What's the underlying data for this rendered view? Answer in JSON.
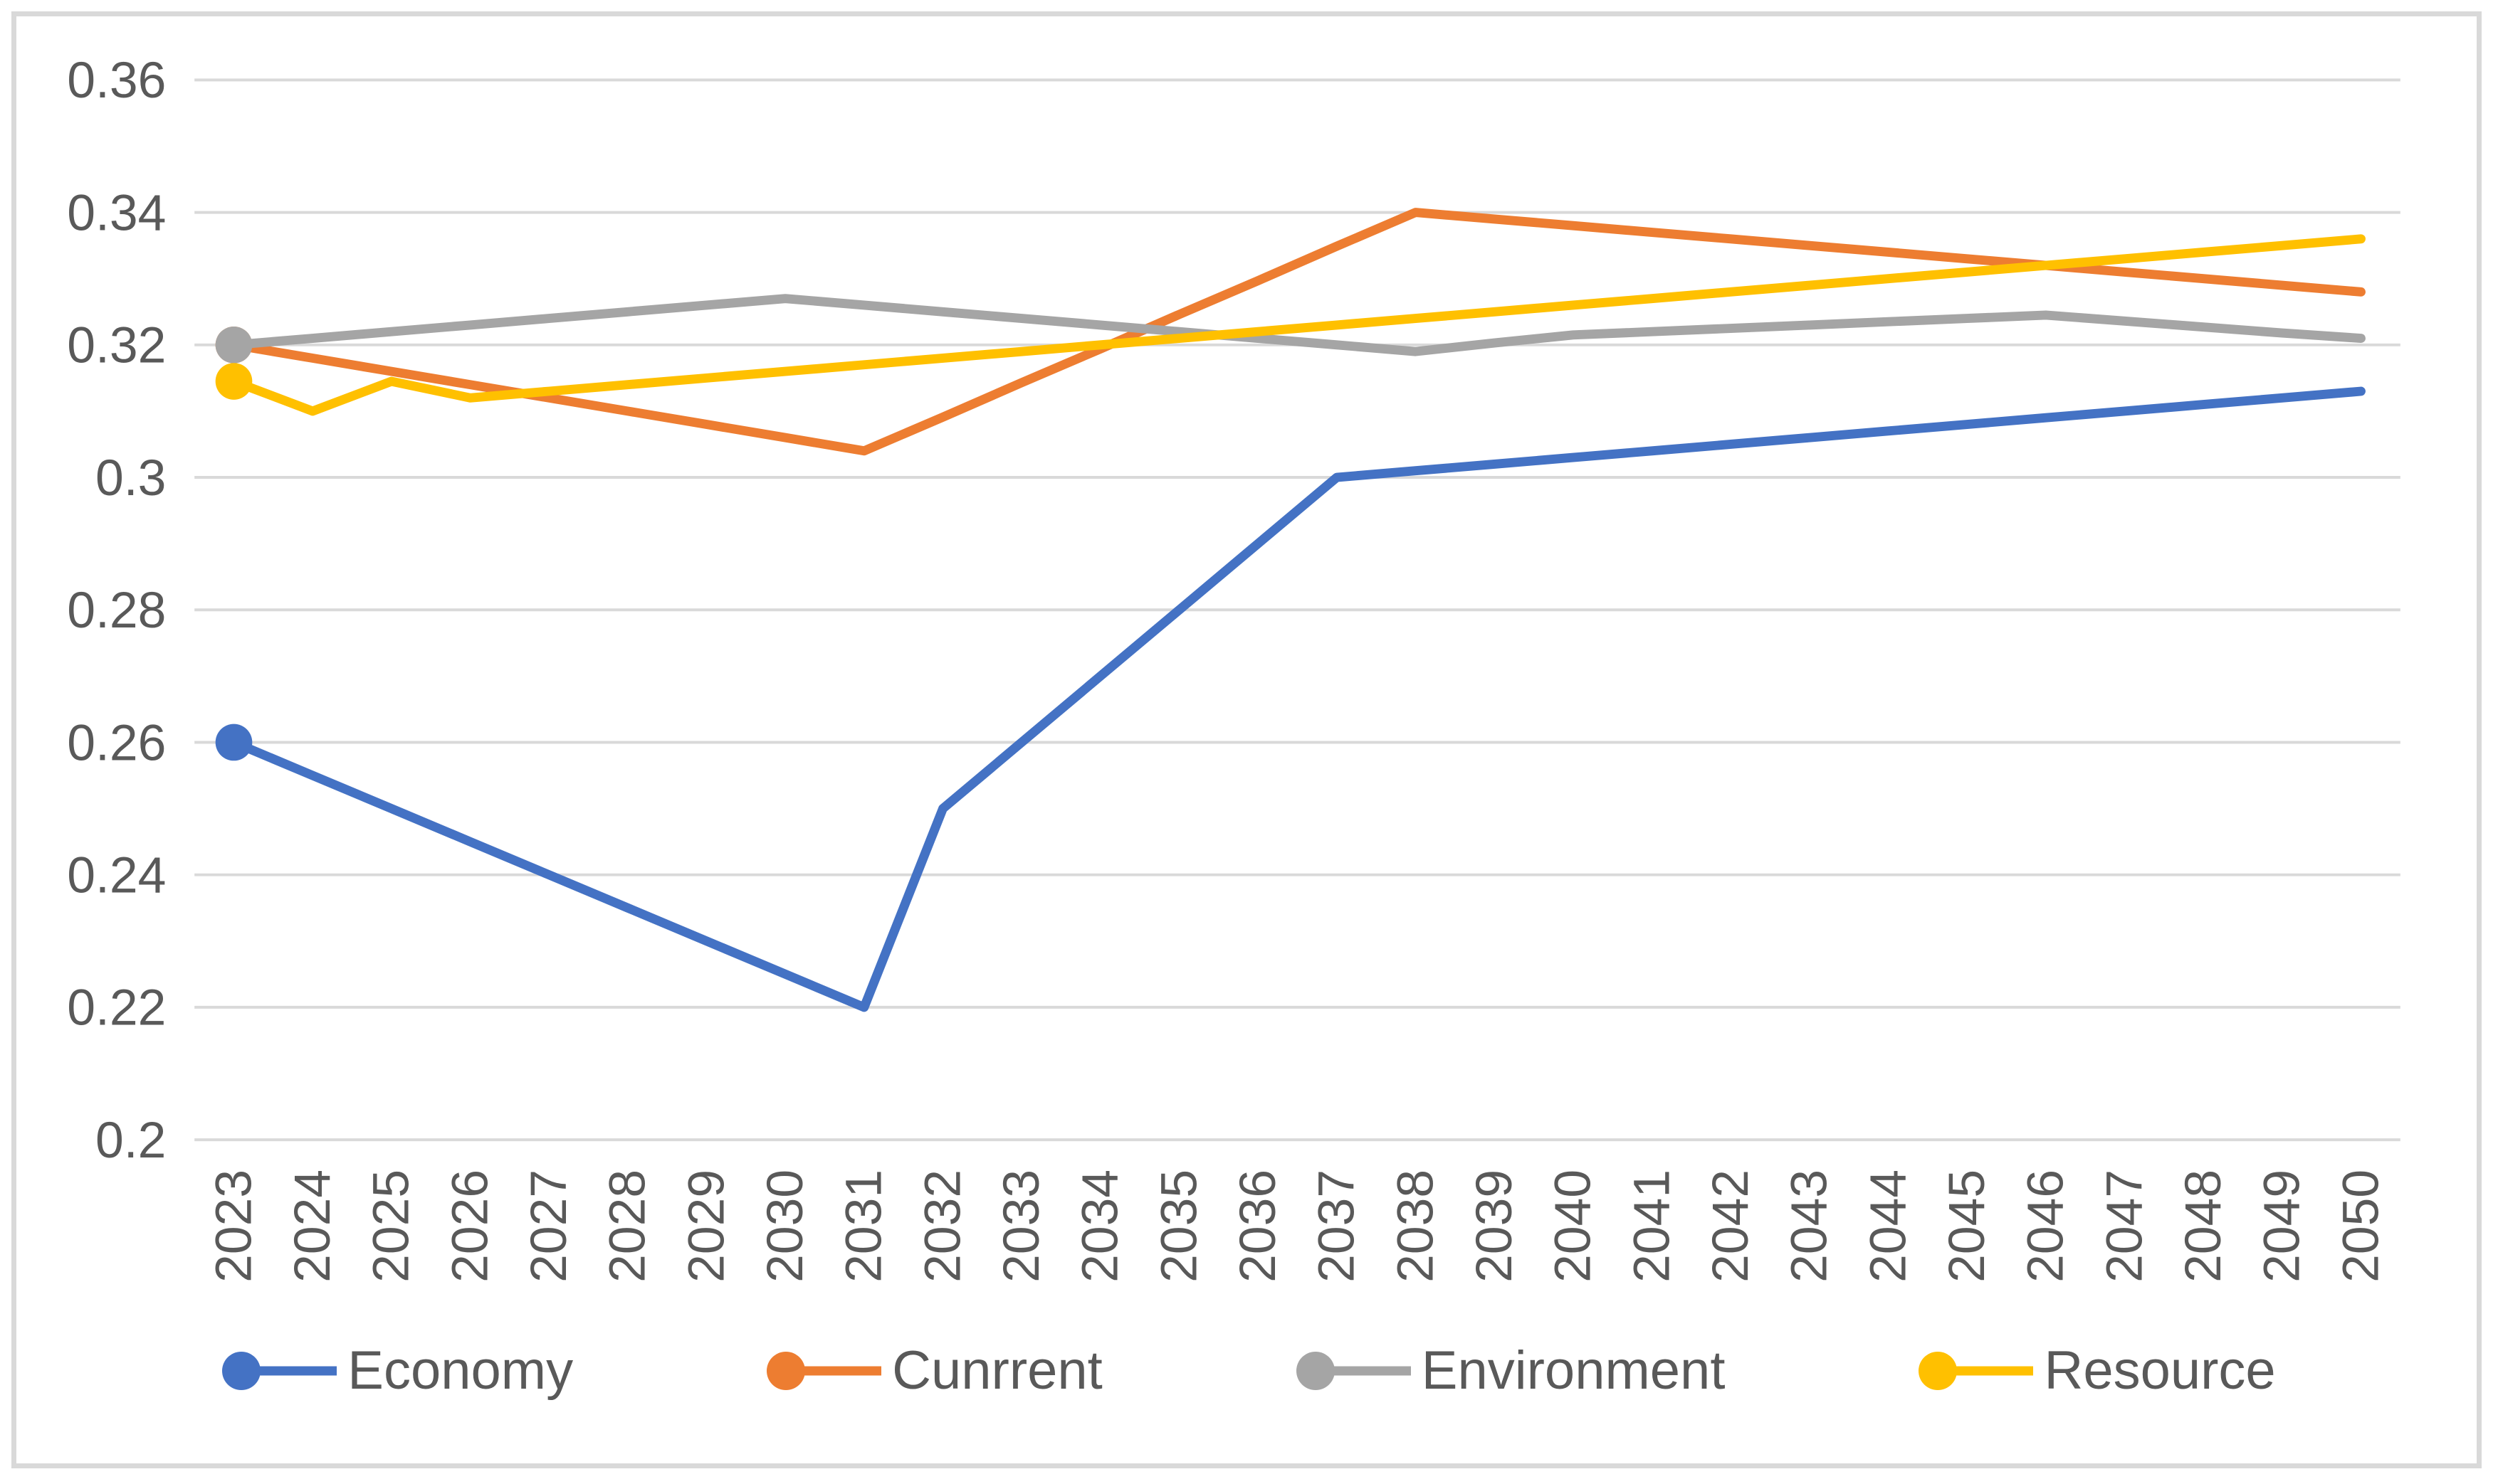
{
  "chart_data": {
    "type": "line",
    "title": "",
    "xlabel": "",
    "ylabel": "",
    "x": [
      2023,
      2024,
      2025,
      2026,
      2027,
      2028,
      2029,
      2030,
      2031,
      2032,
      2033,
      2034,
      2035,
      2036,
      2037,
      2038,
      2039,
      2040,
      2041,
      2042,
      2043,
      2044,
      2045,
      2046,
      2047,
      2048,
      2049,
      2050
    ],
    "ylim": [
      0.2,
      0.36
    ],
    "ytick_step": 0.02,
    "ytick_labels": [
      "0.36",
      "0.34",
      "0.32",
      "0.3",
      "0.28",
      "0.26",
      "0.24",
      "0.22",
      "0.2"
    ],
    "grid": "horizontal",
    "gridline_color": "#d9d9d9",
    "axis_text_color": "#595959",
    "legend_position": "bottom",
    "marker_on_first_point_only": true,
    "series": [
      {
        "name": "Economy",
        "color": "#4472C4",
        "values": [
          0.26,
          0.255,
          0.25,
          0.245,
          0.24,
          0.235,
          0.23,
          0.225,
          0.22,
          0.25,
          0.26,
          0.27,
          0.28,
          0.29,
          0.3,
          0.301,
          0.302,
          0.303,
          0.304,
          0.305,
          0.306,
          0.307,
          0.308,
          0.309,
          0.31,
          0.311,
          0.312,
          0.313
        ]
      },
      {
        "name": "Cunrrent",
        "color": "#ED7D31",
        "values": [
          0.32,
          0.318,
          0.316,
          0.314,
          0.312,
          0.31,
          0.308,
          0.306,
          0.304,
          0.3091,
          0.3143,
          0.3194,
          0.3246,
          0.3297,
          0.3349,
          0.34,
          0.339,
          0.338,
          0.337,
          0.336,
          0.335,
          0.334,
          0.333,
          0.332,
          0.331,
          0.33,
          0.329,
          0.328
        ]
      },
      {
        "name": "Environment",
        "color": "#A5A5A5",
        "values": [
          0.32,
          0.321,
          0.322,
          0.323,
          0.324,
          0.325,
          0.326,
          0.327,
          0.326,
          0.325,
          0.324,
          0.323,
          0.322,
          0.321,
          0.32,
          0.319,
          0.3203,
          0.3215,
          0.322,
          0.3225,
          0.323,
          0.3235,
          0.324,
          0.3245,
          0.3236,
          0.3227,
          0.3218,
          0.321
        ]
      },
      {
        "name": "Resource",
        "color": "#FFC000",
        "values": [
          0.3145,
          0.31,
          0.3145,
          0.312,
          0.313,
          0.314,
          0.315,
          0.316,
          0.317,
          0.318,
          0.319,
          0.32,
          0.321,
          0.322,
          0.323,
          0.324,
          0.325,
          0.326,
          0.327,
          0.328,
          0.329,
          0.33,
          0.331,
          0.332,
          0.333,
          0.334,
          0.335,
          0.336
        ]
      }
    ]
  }
}
